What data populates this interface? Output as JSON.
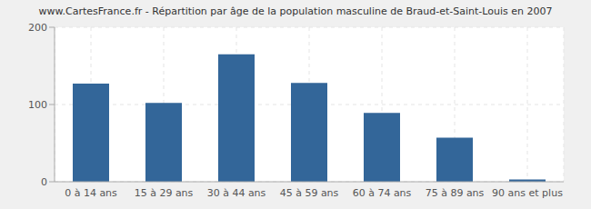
{
  "chart_data": {
    "type": "bar",
    "title": "www.CartesFrance.fr - Répartition par âge de la population masculine de Braud-et-Saint-Louis en 2007",
    "categories": [
      "0 à 14 ans",
      "15 à 29 ans",
      "30 à 44 ans",
      "45 à 59 ans",
      "60 à 74 ans",
      "75 à 89 ans",
      "90 ans et plus"
    ],
    "values": [
      127,
      102,
      165,
      128,
      89,
      57,
      3
    ],
    "color": "#336699",
    "ylim": [
      0,
      200
    ],
    "yticks": [
      0,
      100,
      200
    ],
    "grid": true
  }
}
